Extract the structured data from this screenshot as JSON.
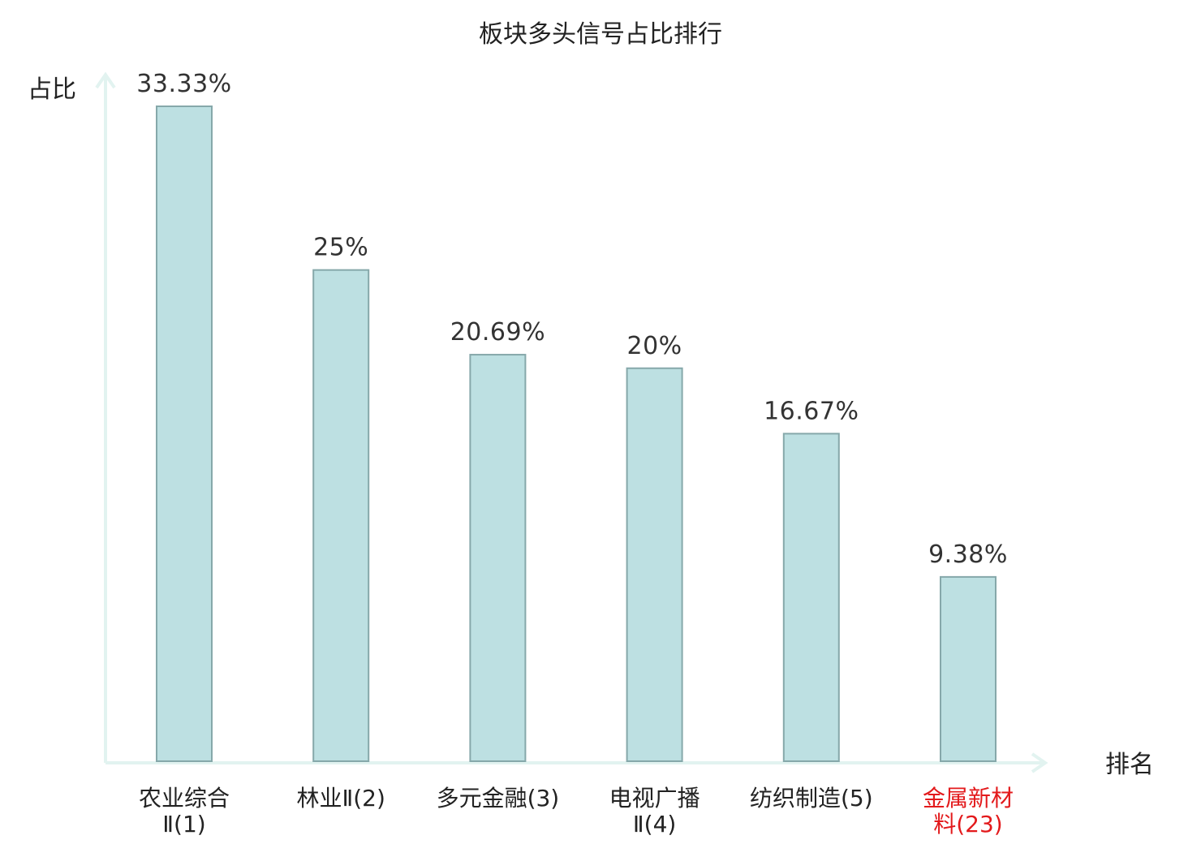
{
  "chart_data": {
    "type": "bar",
    "title": "板块多头信号占比排行",
    "xlabel": "排名",
    "ylabel": "占比",
    "ylim": [
      0,
      34
    ],
    "grid": false,
    "legend": "none",
    "categories": [
      [
        "农业综合",
        "Ⅱ(1)"
      ],
      [
        "林业Ⅱ(2)"
      ],
      [
        "多元金融(3)"
      ],
      [
        "电视广播",
        "Ⅱ(4)"
      ],
      [
        "纺织制造(5)"
      ],
      [
        "金属新材",
        "料(23)"
      ]
    ],
    "values": [
      33.33,
      25,
      20.69,
      20,
      16.67,
      9.38
    ],
    "value_labels": [
      "33.33%",
      "25%",
      "20.69%",
      "20%",
      "16.67%",
      "9.38%"
    ],
    "highlight_index": 5,
    "colors": {
      "bar_fill": "#bde0e2",
      "bar_stroke": "#86a8aa",
      "axis": "#e2f3f0",
      "text": "#222222",
      "highlight_text": "#e31a1c"
    }
  }
}
